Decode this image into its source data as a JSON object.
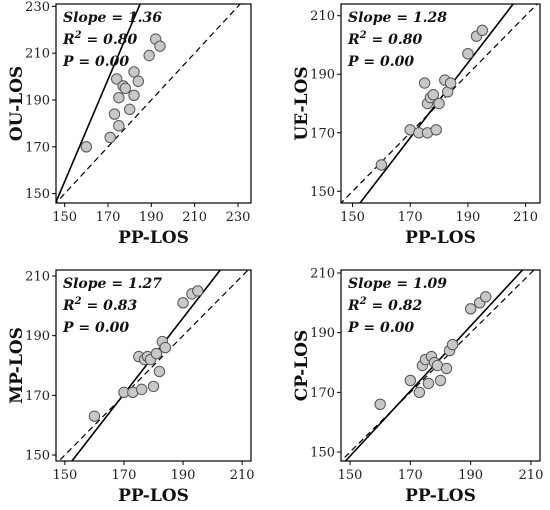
{
  "chart_data": [
    {
      "type": "scatter",
      "xlabel": "PP-LOS",
      "ylabel": "OU-LOS",
      "xlim": [
        146,
        236
      ],
      "ylim": [
        146,
        231
      ],
      "xticks": [
        150,
        170,
        190,
        210,
        230
      ],
      "yticks": [
        150,
        170,
        190,
        210,
        230
      ],
      "stats": {
        "slope": "Slope = 1.36",
        "r2_label": "R",
        "r2_sup": "2",
        "r2_value": " = 0.80",
        "p": "P = 0.00"
      },
      "fit_line": {
        "slope": 1.36,
        "x_at_ymin": 145.8,
        "x_at_ymax": 184.8
      },
      "reference_line": "y = x",
      "points": [
        {
          "x": 160,
          "y": 170
        },
        {
          "x": 171,
          "y": 174
        },
        {
          "x": 173,
          "y": 184
        },
        {
          "x": 175,
          "y": 179
        },
        {
          "x": 175,
          "y": 191
        },
        {
          "x": 174,
          "y": 199
        },
        {
          "x": 177,
          "y": 196
        },
        {
          "x": 178,
          "y": 195
        },
        {
          "x": 180,
          "y": 186
        },
        {
          "x": 182,
          "y": 202
        },
        {
          "x": 182,
          "y": 192
        },
        {
          "x": 184,
          "y": 198
        },
        {
          "x": 189,
          "y": 209
        },
        {
          "x": 192,
          "y": 216
        },
        {
          "x": 194,
          "y": 213
        }
      ]
    },
    {
      "type": "scatter",
      "xlabel": "PP-LOS",
      "ylabel": "UE-LOS",
      "xlim": [
        146,
        215
      ],
      "ylim": [
        146,
        214
      ],
      "xticks": [
        150,
        170,
        190,
        210
      ],
      "yticks": [
        150,
        170,
        190,
        210
      ],
      "stats": {
        "slope": "Slope = 1.28",
        "r2_label": "R",
        "r2_sup": "2",
        "r2_value": " = 0.80",
        "p": "P = 0.00"
      },
      "fit_line": {
        "slope": 1.28,
        "x_at_ymin": 152.6,
        "x_at_ymax": 205.7
      },
      "reference_line": "y = x",
      "points": [
        {
          "x": 160,
          "y": 159
        },
        {
          "x": 170,
          "y": 171
        },
        {
          "x": 173,
          "y": 170
        },
        {
          "x": 175,
          "y": 187
        },
        {
          "x": 176,
          "y": 180
        },
        {
          "x": 176,
          "y": 170
        },
        {
          "x": 177,
          "y": 182
        },
        {
          "x": 178,
          "y": 183
        },
        {
          "x": 179,
          "y": 171
        },
        {
          "x": 180,
          "y": 180
        },
        {
          "x": 182,
          "y": 188
        },
        {
          "x": 183,
          "y": 184
        },
        {
          "x": 184,
          "y": 187
        },
        {
          "x": 190,
          "y": 197
        },
        {
          "x": 193,
          "y": 203
        },
        {
          "x": 195,
          "y": 205
        }
      ]
    },
    {
      "type": "scatter",
      "xlabel": "PP-LOS",
      "ylabel": "MP-LOS",
      "xlim": [
        147,
        213
      ],
      "ylim": [
        148,
        212
      ],
      "xticks": [
        150,
        170,
        190,
        210
      ],
      "yticks": [
        150,
        170,
        190,
        210
      ],
      "stats": {
        "slope": "Slope = 1.27",
        "r2_label": "R",
        "r2_sup": "2",
        "r2_value": " = 0.83",
        "p": "P = 0.00"
      },
      "fit_line": {
        "slope": 1.27,
        "x_at_ymin": 152.4,
        "x_at_ymax": 202.6
      },
      "reference_line": "y = x",
      "points": [
        {
          "x": 160,
          "y": 163
        },
        {
          "x": 170,
          "y": 171
        },
        {
          "x": 173,
          "y": 171
        },
        {
          "x": 175,
          "y": 183
        },
        {
          "x": 176,
          "y": 172
        },
        {
          "x": 177,
          "y": 182
        },
        {
          "x": 178,
          "y": 183
        },
        {
          "x": 179,
          "y": 182
        },
        {
          "x": 180,
          "y": 173
        },
        {
          "x": 181,
          "y": 184
        },
        {
          "x": 182,
          "y": 178
        },
        {
          "x": 183,
          "y": 188
        },
        {
          "x": 184,
          "y": 186
        },
        {
          "x": 190,
          "y": 201
        },
        {
          "x": 193,
          "y": 204
        },
        {
          "x": 195,
          "y": 205
        }
      ]
    },
    {
      "type": "scatter",
      "xlabel": "PP-LOS",
      "ylabel": "CP-LOS",
      "xlim": [
        147,
        213
      ],
      "ylim": [
        147,
        211
      ],
      "xticks": [
        150,
        170,
        190,
        210
      ],
      "yticks": [
        150,
        170,
        190,
        210
      ],
      "stats": {
        "slope": "Slope = 1.09",
        "r2_label": "R",
        "r2_sup": "2",
        "r2_value": " = 0.82",
        "p": "P = 0.00"
      },
      "fit_line": {
        "slope": 1.09,
        "x_at_ymin": 148.5,
        "x_at_ymax": 207.2
      },
      "reference_line": "y = x",
      "points": [
        {
          "x": 160,
          "y": 166
        },
        {
          "x": 170,
          "y": 174
        },
        {
          "x": 173,
          "y": 170
        },
        {
          "x": 174,
          "y": 179
        },
        {
          "x": 175,
          "y": 181
        },
        {
          "x": 176,
          "y": 173
        },
        {
          "x": 177,
          "y": 182
        },
        {
          "x": 178,
          "y": 180
        },
        {
          "x": 179,
          "y": 179
        },
        {
          "x": 180,
          "y": 174
        },
        {
          "x": 182,
          "y": 178
        },
        {
          "x": 183,
          "y": 184
        },
        {
          "x": 184,
          "y": 186
        },
        {
          "x": 190,
          "y": 198
        },
        {
          "x": 193,
          "y": 200
        },
        {
          "x": 195,
          "y": 202
        }
      ]
    }
  ]
}
